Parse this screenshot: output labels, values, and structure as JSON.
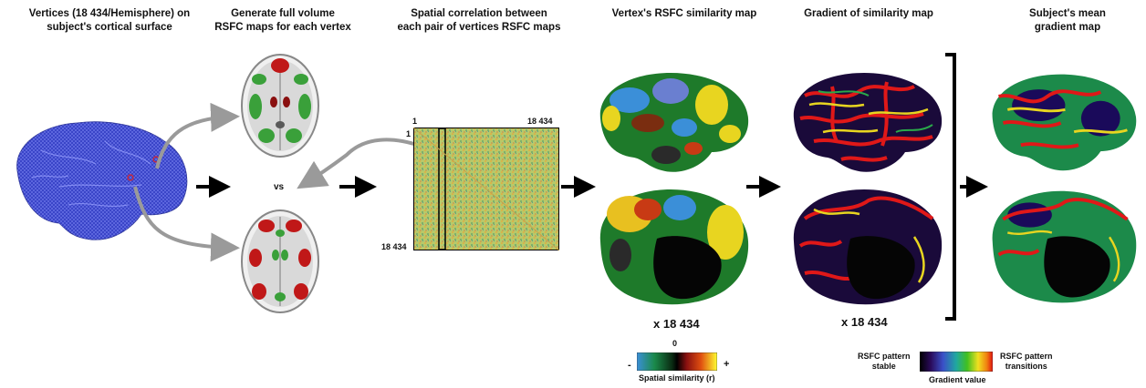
{
  "steps": [
    {
      "line1": "Vertices (18 434/Hemisphere) on",
      "line2": "subject's cortical surface"
    },
    {
      "line1": "Generate full volume",
      "line2": "RSFC maps for each vertex"
    },
    {
      "line1": "Spatial correlation between",
      "line2": "each pair of vertices RSFC maps"
    },
    {
      "line1": "Vertex's RSFC similarity map",
      "line2": ""
    },
    {
      "line1": "Gradient of similarity map",
      "line2": ""
    },
    {
      "line1": "Subject's mean",
      "line2": "gradient map"
    }
  ],
  "vs_label": "vs",
  "matrix": {
    "top_left": "1",
    "top_right": "18 434",
    "left_top": "1",
    "bottom_left": "18 434"
  },
  "multiplier_1": "x 18 434",
  "multiplier_2": "x 18 434",
  "similarity_legend": {
    "minus": "-",
    "zero": "0",
    "plus": "+",
    "title": "Spatial similarity (r)"
  },
  "gradient_legend": {
    "left_line1": "RSFC pattern",
    "left_line2": "stable",
    "right_line1": "RSFC pattern",
    "right_line2": "transitions",
    "title": "Gradient value"
  },
  "colors": {
    "surface_blue": "#3a45c8",
    "arrow": "#000000",
    "curve_arrow": "#9a9a9a",
    "matrix_fill": "#b7c86a"
  }
}
